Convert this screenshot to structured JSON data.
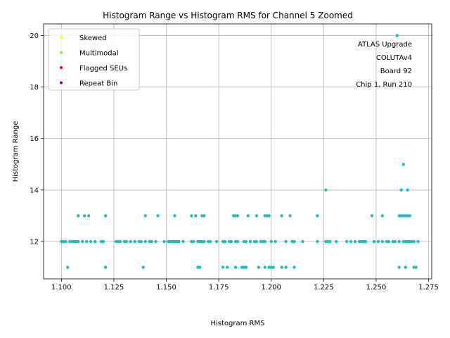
{
  "chart_data": {
    "type": "scatter",
    "title": "Histogram Range vs Histogram RMS for Channel 5 Zoomed",
    "xlabel": "Histogram RMS",
    "ylabel": "Histogram Range",
    "xlim": [
      1.0915,
      1.2765
    ],
    "ylim": [
      10.55,
      20.45
    ],
    "xticks": [
      1.1,
      1.125,
      1.15,
      1.175,
      1.2,
      1.225,
      1.25,
      1.275
    ],
    "xtick_labels": [
      "1.100",
      "1.125",
      "1.150",
      "1.175",
      "1.200",
      "1.225",
      "1.250",
      "1.275"
    ],
    "yticks": [
      12,
      14,
      16,
      18,
      20
    ],
    "ytick_labels": [
      "12",
      "14",
      "16",
      "18",
      "20"
    ],
    "grid": true,
    "legend_position": "top-left",
    "legend": [
      {
        "label": "Skewed",
        "color": "#ffff00"
      },
      {
        "label": "Multimodal",
        "color": "#7fff00"
      },
      {
        "label": "Flagged SEUs",
        "color": "#ff0000"
      },
      {
        "label": "Repeat Bin",
        "color": "#800080"
      }
    ],
    "annotation": [
      "ATLAS Upgrade",
      "COLUTAv4",
      "Board 92",
      "Chip 1, Run 210"
    ],
    "series": [
      {
        "name": "Channel 5",
        "color": "#17bfbf",
        "points": [
          [
            1.1,
            12
          ],
          [
            1.101,
            12
          ],
          [
            1.102,
            12
          ],
          [
            1.104,
            12
          ],
          [
            1.105,
            12
          ],
          [
            1.106,
            12
          ],
          [
            1.107,
            12
          ],
          [
            1.108,
            12
          ],
          [
            1.11,
            12
          ],
          [
            1.112,
            12
          ],
          [
            1.114,
            12
          ],
          [
            1.116,
            12
          ],
          [
            1.119,
            12
          ],
          [
            1.12,
            12
          ],
          [
            1.126,
            12
          ],
          [
            1.127,
            12
          ],
          [
            1.128,
            12
          ],
          [
            1.13,
            12
          ],
          [
            1.131,
            12
          ],
          [
            1.133,
            12
          ],
          [
            1.135,
            12
          ],
          [
            1.137,
            12
          ],
          [
            1.138,
            12
          ],
          [
            1.14,
            12
          ],
          [
            1.142,
            12
          ],
          [
            1.143,
            12
          ],
          [
            1.145,
            12
          ],
          [
            1.149,
            12
          ],
          [
            1.151,
            12
          ],
          [
            1.152,
            12
          ],
          [
            1.153,
            12
          ],
          [
            1.154,
            12
          ],
          [
            1.155,
            12
          ],
          [
            1.156,
            12
          ],
          [
            1.158,
            12
          ],
          [
            1.162,
            12
          ],
          [
            1.163,
            12
          ],
          [
            1.165,
            12
          ],
          [
            1.166,
            12
          ],
          [
            1.167,
            12
          ],
          [
            1.168,
            12
          ],
          [
            1.17,
            12
          ],
          [
            1.171,
            12
          ],
          [
            1.174,
            12
          ],
          [
            1.177,
            12
          ],
          [
            1.178,
            12
          ],
          [
            1.18,
            12
          ],
          [
            1.181,
            12
          ],
          [
            1.183,
            12
          ],
          [
            1.184,
            12
          ],
          [
            1.187,
            12
          ],
          [
            1.188,
            12
          ],
          [
            1.19,
            12
          ],
          [
            1.192,
            12
          ],
          [
            1.193,
            12
          ],
          [
            1.195,
            12
          ],
          [
            1.196,
            12
          ],
          [
            1.197,
            12
          ],
          [
            1.2,
            12
          ],
          [
            1.202,
            12
          ],
          [
            1.207,
            12
          ],
          [
            1.21,
            12
          ],
          [
            1.211,
            12
          ],
          [
            1.215,
            12
          ],
          [
            1.222,
            12
          ],
          [
            1.226,
            12
          ],
          [
            1.227,
            12
          ],
          [
            1.228,
            12
          ],
          [
            1.231,
            12
          ],
          [
            1.236,
            12
          ],
          [
            1.238,
            12
          ],
          [
            1.24,
            12
          ],
          [
            1.242,
            12
          ],
          [
            1.243,
            12
          ],
          [
            1.244,
            12
          ],
          [
            1.245,
            12
          ],
          [
            1.249,
            12
          ],
          [
            1.251,
            12
          ],
          [
            1.253,
            12
          ],
          [
            1.255,
            12
          ],
          [
            1.256,
            12
          ],
          [
            1.258,
            12
          ],
          [
            1.259,
            12
          ],
          [
            1.261,
            12
          ],
          [
            1.263,
            12
          ],
          [
            1.264,
            12
          ],
          [
            1.265,
            12
          ],
          [
            1.266,
            12
          ],
          [
            1.267,
            12
          ],
          [
            1.268,
            12
          ],
          [
            1.27,
            12
          ],
          [
            1.108,
            13
          ],
          [
            1.111,
            13
          ],
          [
            1.113,
            13
          ],
          [
            1.121,
            13
          ],
          [
            1.14,
            13
          ],
          [
            1.146,
            13
          ],
          [
            1.154,
            13
          ],
          [
            1.162,
            13
          ],
          [
            1.164,
            13
          ],
          [
            1.167,
            13
          ],
          [
            1.168,
            13
          ],
          [
            1.182,
            13
          ],
          [
            1.183,
            13
          ],
          [
            1.184,
            13
          ],
          [
            1.189,
            13
          ],
          [
            1.193,
            13
          ],
          [
            1.197,
            13
          ],
          [
            1.198,
            13
          ],
          [
            1.199,
            13
          ],
          [
            1.205,
            13
          ],
          [
            1.209,
            13
          ],
          [
            1.222,
            13
          ],
          [
            1.248,
            13
          ],
          [
            1.253,
            13
          ],
          [
            1.261,
            13
          ],
          [
            1.262,
            13
          ],
          [
            1.263,
            13
          ],
          [
            1.264,
            13
          ],
          [
            1.265,
            13
          ],
          [
            1.266,
            13
          ],
          [
            1.103,
            11
          ],
          [
            1.121,
            11
          ],
          [
            1.139,
            11
          ],
          [
            1.165,
            11
          ],
          [
            1.166,
            11
          ],
          [
            1.177,
            11
          ],
          [
            1.179,
            11
          ],
          [
            1.183,
            11
          ],
          [
            1.186,
            11
          ],
          [
            1.187,
            11
          ],
          [
            1.188,
            11
          ],
          [
            1.194,
            11
          ],
          [
            1.197,
            11
          ],
          [
            1.199,
            11
          ],
          [
            1.2,
            11
          ],
          [
            1.201,
            11
          ],
          [
            1.205,
            11
          ],
          [
            1.207,
            11
          ],
          [
            1.211,
            11
          ],
          [
            1.261,
            11
          ],
          [
            1.264,
            11
          ],
          [
            1.268,
            11
          ],
          [
            1.269,
            11
          ],
          [
            1.226,
            14
          ],
          [
            1.262,
            14
          ],
          [
            1.265,
            14
          ],
          [
            1.263,
            15
          ],
          [
            1.26,
            20
          ]
        ]
      }
    ]
  }
}
